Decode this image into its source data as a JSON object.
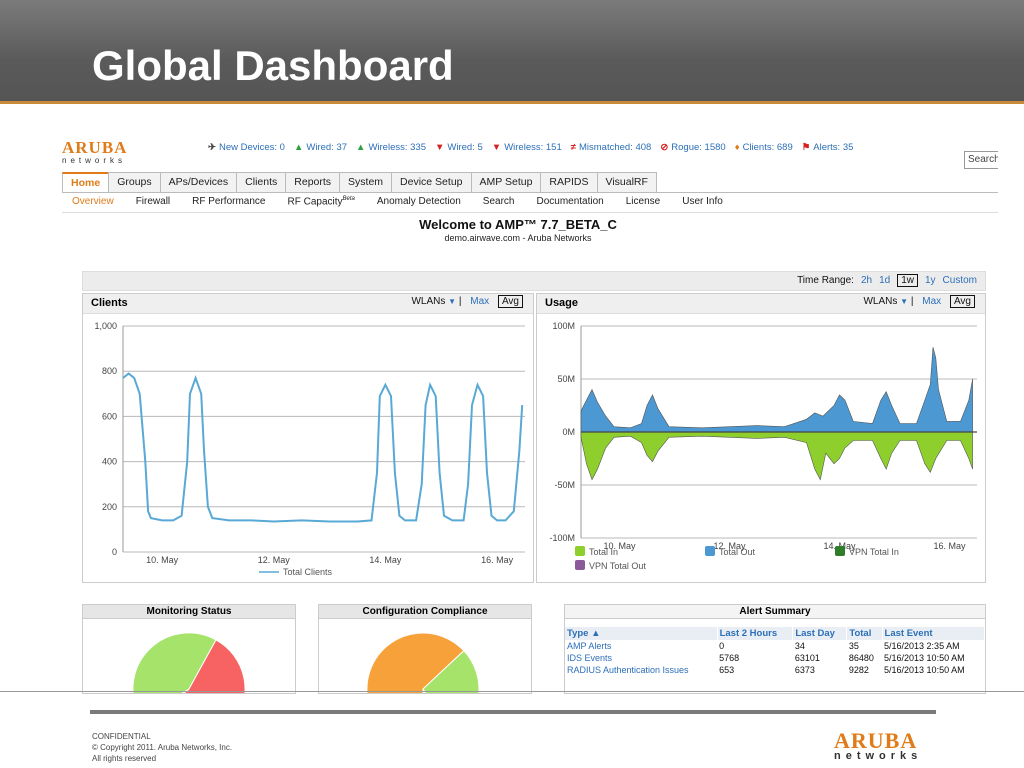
{
  "slide": {
    "title": "Global Dashboard",
    "footer_lines": [
      "CONFIDENTIAL",
      "© Copyright 2011. Aruba Networks, Inc.",
      "All rights reserved"
    ],
    "logo_top": "ARUBA",
    "logo_bottom": "networks"
  },
  "app": {
    "logo_top": "ARUBA",
    "logo_bottom": "networks",
    "status": [
      {
        "icon": "device-icon",
        "symbol": "✈",
        "color": "#444444",
        "label": "New Devices: 0"
      },
      {
        "icon": "arrow-up-icon",
        "symbol": "▲",
        "color": "#2e9e3e",
        "label": "Wired: 37"
      },
      {
        "icon": "arrow-up-icon",
        "symbol": "▲",
        "color": "#2e9e3e",
        "label": "Wireless: 335"
      },
      {
        "icon": "arrow-down-icon",
        "symbol": "▼",
        "color": "#d42020",
        "label": "Wired: 5"
      },
      {
        "icon": "arrow-down-icon",
        "symbol": "▼",
        "color": "#d42020",
        "label": "Wireless: 151"
      },
      {
        "icon": "not-equal-icon",
        "symbol": "≠",
        "color": "#d42020",
        "label": "Mismatched: 408"
      },
      {
        "icon": "no-entry-icon",
        "symbol": "⊘",
        "color": "#d42020",
        "label": "Rogue: 1580"
      },
      {
        "icon": "client-icon",
        "symbol": "♦",
        "color": "#e07b1a",
        "label": "Clients: 689"
      },
      {
        "icon": "flag-icon",
        "symbol": "⚑",
        "color": "#d42020",
        "label": "Alerts: 35"
      }
    ],
    "search_placeholder": "Search",
    "tabs": [
      "Home",
      "Groups",
      "APs/Devices",
      "Clients",
      "Reports",
      "System",
      "Device Setup",
      "AMP Setup",
      "RAPIDS",
      "VisualRF"
    ],
    "subnav": [
      "Overview",
      "Firewall",
      "RF Performance",
      "RF Capacity",
      "Anomaly Detection",
      "Search",
      "Documentation",
      "License",
      "User Info"
    ],
    "subnav_beta": "Beta",
    "welcome": "Welcome to AMP™ 7.7_BETA_C",
    "welcome_sub": "demo.airwave.com - Aruba Networks",
    "time_range": {
      "label": "Time Range:",
      "options": [
        "2h",
        "1d",
        "1w",
        "1y",
        "Custom"
      ],
      "selected": "1w"
    },
    "clients_panel": {
      "title": "Clients",
      "filter": "WLANs",
      "max": "Max",
      "avg": "Avg"
    },
    "usage_panel": {
      "title": "Usage",
      "filter": "WLANs",
      "max": "Max",
      "avg": "Avg"
    },
    "monitoring_title": "Monitoring Status",
    "compliance_title": "Configuration Compliance",
    "alert_summary": {
      "title": "Alert Summary",
      "headers": [
        "Type ▲",
        "Last 2 Hours",
        "Last Day",
        "Total",
        "Last Event"
      ],
      "rows": [
        [
          "AMP Alerts",
          "0",
          "34",
          "35",
          "5/16/2013 2:35 AM"
        ],
        [
          "IDS Events",
          "5768",
          "63101",
          "86480",
          "5/16/2013 10:50 AM"
        ],
        [
          "RADIUS Authentication Issues",
          "653",
          "6373",
          "9282",
          "5/16/2013 10:50 AM"
        ]
      ]
    },
    "monitoring_pie": [
      {
        "share": 0.42,
        "color": "#a6e36a"
      },
      {
        "share": 0.56,
        "color": "#f76363"
      },
      {
        "share": 0.02,
        "color": "#f7a13a"
      }
    ],
    "compliance_pie": [
      {
        "share": 0.63,
        "color": "#f7a13a"
      },
      {
        "share": 0.28,
        "color": "#a6e36a"
      },
      {
        "share": 0.05,
        "color": "#c8c8c8"
      },
      {
        "share": 0.04,
        "color": "#f2c530"
      }
    ]
  },
  "chart_data": [
    {
      "type": "line",
      "title": "Clients",
      "x_ticks": [
        "10. May",
        "12. May",
        "14. May",
        "16. May"
      ],
      "y_ticks": [
        "1,000",
        "800",
        "600",
        "400",
        "200",
        "0"
      ],
      "ylim": [
        0,
        1000
      ],
      "x_range_days": [
        9.3,
        16.5
      ],
      "legend": [
        "Total Clients"
      ],
      "color": "#58a9d6",
      "series": [
        {
          "name": "Total Clients",
          "points": [
            [
              9.3,
              770
            ],
            [
              9.4,
              790
            ],
            [
              9.5,
              770
            ],
            [
              9.6,
              700
            ],
            [
              9.7,
              400
            ],
            [
              9.75,
              180
            ],
            [
              9.8,
              150
            ],
            [
              10.0,
              140
            ],
            [
              10.2,
              140
            ],
            [
              10.35,
              160
            ],
            [
              10.45,
              400
            ],
            [
              10.5,
              700
            ],
            [
              10.6,
              770
            ],
            [
              10.7,
              700
            ],
            [
              10.75,
              450
            ],
            [
              10.82,
              200
            ],
            [
              10.9,
              150
            ],
            [
              11.2,
              140
            ],
            [
              11.6,
              140
            ],
            [
              12.0,
              135
            ],
            [
              12.5,
              140
            ],
            [
              13.0,
              135
            ],
            [
              13.5,
              135
            ],
            [
              13.75,
              140
            ],
            [
              13.85,
              350
            ],
            [
              13.9,
              690
            ],
            [
              14.0,
              740
            ],
            [
              14.1,
              690
            ],
            [
              14.17,
              350
            ],
            [
              14.25,
              160
            ],
            [
              14.35,
              140
            ],
            [
              14.55,
              140
            ],
            [
              14.65,
              300
            ],
            [
              14.72,
              650
            ],
            [
              14.8,
              740
            ],
            [
              14.9,
              690
            ],
            [
              14.97,
              350
            ],
            [
              15.05,
              160
            ],
            [
              15.2,
              140
            ],
            [
              15.4,
              140
            ],
            [
              15.48,
              300
            ],
            [
              15.55,
              650
            ],
            [
              15.65,
              740
            ],
            [
              15.75,
              690
            ],
            [
              15.82,
              350
            ],
            [
              15.9,
              160
            ],
            [
              16.0,
              140
            ],
            [
              16.15,
              140
            ],
            [
              16.3,
              180
            ],
            [
              16.4,
              450
            ],
            [
              16.45,
              650
            ]
          ]
        }
      ]
    },
    {
      "type": "area",
      "title": "Usage",
      "x_ticks": [
        "10. May",
        "12. May",
        "14. May",
        "16. May"
      ],
      "y_ticks": [
        "100M",
        "50M",
        "0M",
        "-50M",
        "-100M"
      ],
      "ylim": [
        -100,
        100
      ],
      "x_range_days": [
        9.3,
        16.5
      ],
      "legend": [
        "Total In",
        "Total Out",
        "VPN Total In",
        "VPN Total Out"
      ],
      "legend_colors": [
        "#8fcf2d",
        "#4b98d2",
        "#2f7d2a",
        "#8a5a9a"
      ],
      "series": [
        {
          "name": "Total Out",
          "points": [
            [
              9.3,
              20
            ],
            [
              9.45,
              35
            ],
            [
              9.5,
              40
            ],
            [
              9.6,
              28
            ],
            [
              9.75,
              15
            ],
            [
              9.9,
              5
            ],
            [
              10.2,
              4
            ],
            [
              10.4,
              8
            ],
            [
              10.5,
              25
            ],
            [
              10.6,
              35
            ],
            [
              10.7,
              22
            ],
            [
              10.9,
              5
            ],
            [
              11.5,
              4
            ],
            [
              12.0,
              5
            ],
            [
              12.5,
              6
            ],
            [
              13.0,
              5
            ],
            [
              13.4,
              12
            ],
            [
              13.55,
              18
            ],
            [
              13.7,
              15
            ],
            [
              13.9,
              25
            ],
            [
              14.0,
              35
            ],
            [
              14.1,
              30
            ],
            [
              14.25,
              10
            ],
            [
              14.6,
              8
            ],
            [
              14.75,
              30
            ],
            [
              14.85,
              38
            ],
            [
              14.95,
              25
            ],
            [
              15.1,
              8
            ],
            [
              15.4,
              8
            ],
            [
              15.55,
              30
            ],
            [
              15.65,
              45
            ],
            [
              15.7,
              80
            ],
            [
              15.75,
              70
            ],
            [
              15.8,
              40
            ],
            [
              15.95,
              10
            ],
            [
              16.2,
              10
            ],
            [
              16.35,
              30
            ],
            [
              16.42,
              50
            ]
          ]
        },
        {
          "name": "Total In",
          "points": [
            [
              9.3,
              -5
            ],
            [
              9.4,
              -30
            ],
            [
              9.5,
              -45
            ],
            [
              9.6,
              -35
            ],
            [
              9.75,
              -15
            ],
            [
              9.9,
              -5
            ],
            [
              10.2,
              -4
            ],
            [
              10.4,
              -10
            ],
            [
              10.5,
              -22
            ],
            [
              10.6,
              -28
            ],
            [
              10.7,
              -18
            ],
            [
              10.9,
              -5
            ],
            [
              11.5,
              -4
            ],
            [
              12.0,
              -5
            ],
            [
              12.5,
              -6
            ],
            [
              13.0,
              -5
            ],
            [
              13.4,
              -10
            ],
            [
              13.55,
              -35
            ],
            [
              13.65,
              -45
            ],
            [
              13.75,
              -20
            ],
            [
              13.9,
              -30
            ],
            [
              14.0,
              -25
            ],
            [
              14.1,
              -15
            ],
            [
              14.25,
              -8
            ],
            [
              14.6,
              -8
            ],
            [
              14.75,
              -25
            ],
            [
              14.85,
              -35
            ],
            [
              14.95,
              -20
            ],
            [
              15.1,
              -8
            ],
            [
              15.4,
              -8
            ],
            [
              15.55,
              -30
            ],
            [
              15.65,
              -38
            ],
            [
              15.75,
              -25
            ],
            [
              15.95,
              -8
            ],
            [
              16.2,
              -8
            ],
            [
              16.35,
              -25
            ],
            [
              16.42,
              -35
            ]
          ]
        }
      ]
    }
  ]
}
